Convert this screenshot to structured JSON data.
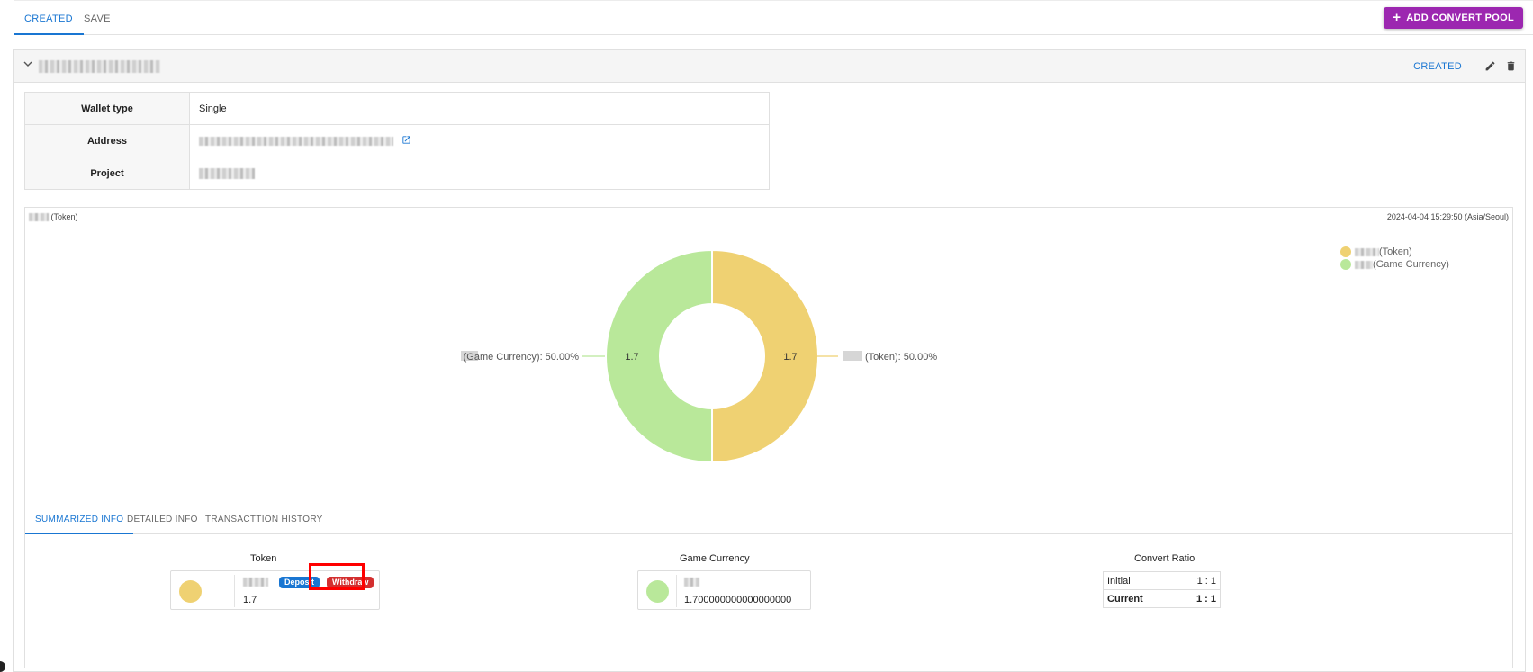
{
  "tabs": [
    {
      "label": "CREATED",
      "active": true
    },
    {
      "label": "SAVE",
      "active": false
    }
  ],
  "add_button": {
    "plus": "+",
    "label": "ADD CONVERT POOL"
  },
  "pool": {
    "status": "CREATED",
    "edit_icon": "pencil-icon",
    "delete_icon": "trash-icon",
    "info": {
      "wallet_type_label": "Wallet type",
      "wallet_type_value": "Single",
      "address_label": "Address",
      "project_label": "Project"
    }
  },
  "chart": {
    "title_suffix": "(Token)",
    "timestamp": "2024-04-04 15:29:50 (Asia/Seoul)",
    "legend": [
      {
        "label": "(Token)",
        "color": "#efd172"
      },
      {
        "label": "(Game Currency)",
        "color": "#b9e89a"
      }
    ],
    "labels": {
      "left": "(Game Currency): 50.00%",
      "right": "(Token): 50.00%",
      "left_value": "1.7",
      "right_value": "1.7"
    }
  },
  "chart_data": {
    "type": "pie",
    "donut": true,
    "timestamp": "2024-04-04 15:29:50 (Asia/Seoul)",
    "slices": [
      {
        "name": "(Token)",
        "value": 1.7,
        "percent": 50.0,
        "color": "#efd172"
      },
      {
        "name": "(Game Currency)",
        "value": 1.7,
        "percent": 50.0,
        "color": "#b9e89a"
      }
    ],
    "legend_position": "top-right"
  },
  "subtabs": [
    {
      "label": "SUMMARIZED INFO",
      "active": true
    },
    {
      "label": "DETAILED INFO",
      "active": false
    },
    {
      "label": "TRANSACTTION HISTORY",
      "active": false
    }
  ],
  "summary": {
    "token": {
      "title": "Token",
      "value": "1.7",
      "deposit": "Deposit",
      "withdraw": "Withdraw",
      "color": "#efd172"
    },
    "game_currency": {
      "title": "Game Currency",
      "value": "1.700000000000000000",
      "color": "#b9e89a"
    },
    "convert_ratio": {
      "title": "Convert Ratio",
      "initial_label": "Initial",
      "initial_value": "1 : 1",
      "current_label": "Current",
      "current_value": "1 : 1"
    }
  }
}
